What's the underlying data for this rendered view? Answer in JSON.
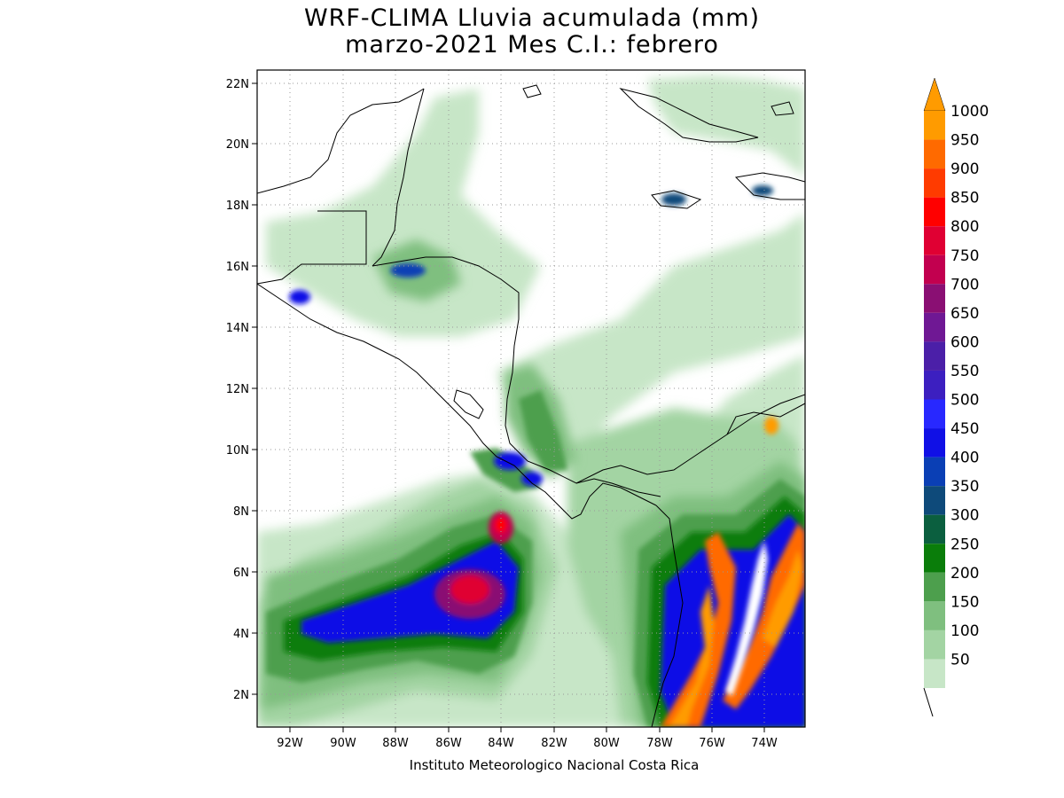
{
  "title_line1": "WRF-CLIMA Lluvia acumulada (mm)",
  "title_line2": "marzo-2021 Mes C.I.: febrero",
  "credit": "Instituto Meteorologico Nacional Costa Rica",
  "axes": {
    "lon_ticks": [
      "92W",
      "90W",
      "88W",
      "86W",
      "84W",
      "82W",
      "80W",
      "78W",
      "76W",
      "74W"
    ],
    "lat_ticks": [
      "2N",
      "4N",
      "6N",
      "8N",
      "10N",
      "12N",
      "14N",
      "16N",
      "18N",
      "20N",
      "22N"
    ],
    "lon_range": [
      -93.2,
      -72.5
    ],
    "lat_range": [
      1.0,
      22.4
    ]
  },
  "colorbar": {
    "labels": [
      "50",
      "100",
      "150",
      "200",
      "250",
      "300",
      "350",
      "400",
      "450",
      "500",
      "550",
      "600",
      "650",
      "700",
      "750",
      "800",
      "850",
      "900",
      "950",
      "1000"
    ],
    "colors": [
      "#c7e6c7",
      "#a3d4a3",
      "#7fbf7f",
      "#4d9f4d",
      "#0a7d0a",
      "#0b5f3f",
      "#0e4a7a",
      "#0a3fb5",
      "#1010e6",
      "#2828ff",
      "#3c1fc0",
      "#4b1fa8",
      "#6f1894",
      "#8a0f73",
      "#c2004f",
      "#e00033",
      "#ff0000",
      "#ff3b00",
      "#ff6a00",
      "#ff9b00"
    ],
    "extend_top_color": "#ff9b00"
  },
  "legend_units": "mm"
}
